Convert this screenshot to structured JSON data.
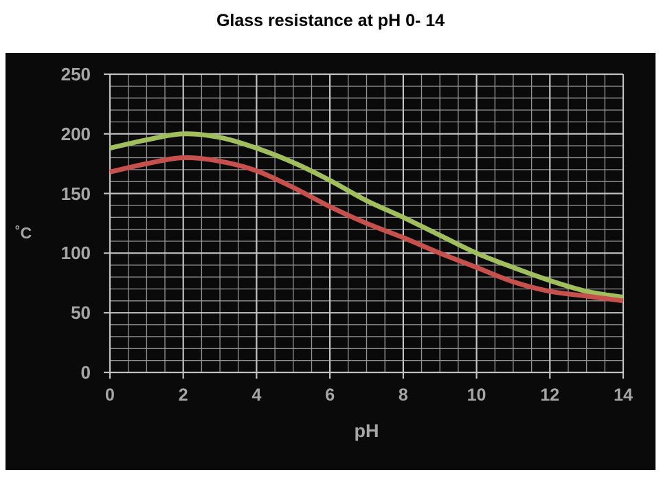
{
  "title": "Glass resistance at pH 0- 14",
  "colors": {
    "page_background": "#ffffff",
    "plot_background": "#0a0a0a",
    "grid_minor": "#969696",
    "grid_major": "#c2c2c2",
    "axis": "#c2c2c2",
    "tick_label": "#a6a6a6",
    "title_text": "#000000",
    "series_green": "#a0bf5c",
    "series_red": "#c5504c"
  },
  "chart_data": {
    "type": "line",
    "title": "Glass resistance at pH 0- 14",
    "xlabel": "pH",
    "ylabel": "˚C",
    "xlim": [
      0,
      14
    ],
    "ylim": [
      0,
      250
    ],
    "x_major_ticks": [
      0,
      2,
      4,
      6,
      8,
      10,
      12,
      14
    ],
    "y_major_ticks": [
      0,
      50,
      100,
      150,
      200,
      250
    ],
    "x_minor_step": 0.5,
    "y_minor_step": 10,
    "grid": "major+minor",
    "legend": "none",
    "plot_style": "black background, light gray grid, smooth thick curves",
    "x": [
      0,
      1,
      2,
      3,
      4,
      5,
      6,
      7,
      8,
      9,
      10,
      11,
      12,
      13,
      14
    ],
    "series": [
      {
        "name": "upper-curve-green",
        "color": "#a0bf5c",
        "values": [
          188,
          195,
          200,
          197,
          188,
          176,
          161,
          144,
          130,
          115,
          100,
          88,
          77,
          68,
          63
        ]
      },
      {
        "name": "lower-curve-red",
        "color": "#c5504c",
        "values": [
          168,
          175,
          180,
          177,
          169,
          155,
          139,
          125,
          113,
          100,
          88,
          76,
          68,
          64,
          60
        ]
      }
    ]
  }
}
